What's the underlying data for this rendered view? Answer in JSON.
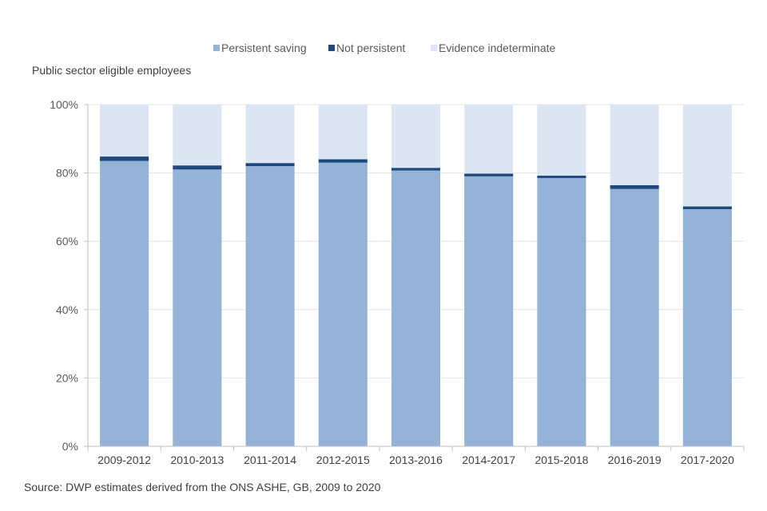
{
  "chart_data": {
    "type": "bar",
    "stacked": true,
    "ylabel": "Public sector eligible employees",
    "source": "Source: DWP estimates derived from the ONS ASHE, GB, 2009 to 2020",
    "ylim": [
      0,
      100
    ],
    "y_ticks": [
      0,
      20,
      40,
      60,
      80,
      100
    ],
    "y_tick_labels": [
      "0%",
      "20%",
      "40%",
      "60%",
      "80%",
      "100%"
    ],
    "grid": true,
    "legend_position": "top-center",
    "categories": [
      "2009-2012",
      "2010-2013",
      "2011-2014",
      "2012-2015",
      "2013-2016",
      "2014-2017",
      "2015-2018",
      "2016-2019",
      "2017-2020"
    ],
    "series": [
      {
        "name": "Persistent saving",
        "color": "#95b3d7",
        "values": [
          83.5,
          81.0,
          82.0,
          83.0,
          80.7,
          79.0,
          78.5,
          75.3,
          69.4
        ]
      },
      {
        "name": "Not persistent",
        "color": "#1f497d",
        "values": [
          1.3,
          1.2,
          0.9,
          1.0,
          0.8,
          0.8,
          0.7,
          1.1,
          0.8
        ]
      },
      {
        "name": "Evidence indeterminate",
        "color": "#dce6f2",
        "values": [
          15.2,
          17.8,
          17.1,
          16.0,
          18.5,
          20.2,
          20.8,
          23.6,
          29.8
        ]
      }
    ]
  }
}
